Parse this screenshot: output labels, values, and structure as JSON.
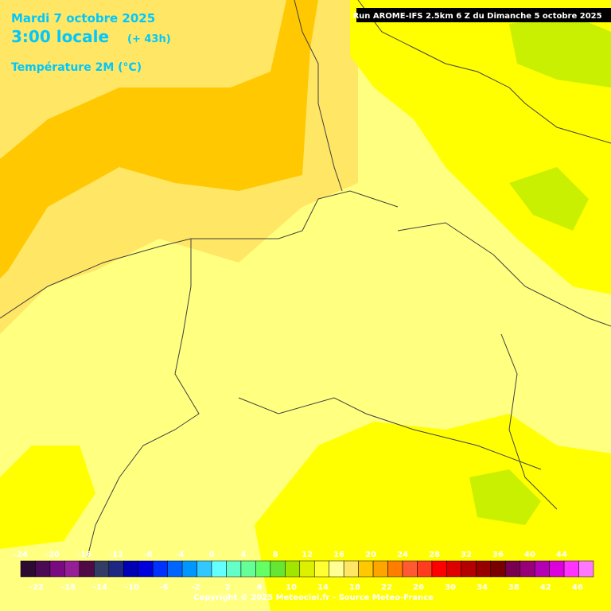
{
  "header": {
    "date": "Mardi 7 octobre 2025",
    "time": "3:00 locale",
    "offset": "(+ 43h)",
    "field": "Température 2M (°C)",
    "run": "Run AROME-IFS 2.5km 6 Z du Dimanche 5 octobre 2025"
  },
  "legend": {
    "ticks": [
      -24,
      -22,
      -20,
      -18,
      -16,
      -14,
      -12,
      -10,
      -8,
      -6,
      -4,
      -2,
      0,
      2,
      4,
      6,
      8,
      10,
      12,
      14,
      16,
      18,
      20,
      22,
      24,
      26,
      28,
      30,
      32,
      34,
      36,
      38,
      40,
      42,
      44,
      46
    ],
    "colors": [
      "#2d0a32",
      "#4b0a55",
      "#780a82",
      "#961e96",
      "#500a46",
      "#323c64",
      "#1e2882",
      "#0000b4",
      "#0000dc",
      "#0032ff",
      "#0064ff",
      "#0096ff",
      "#32c8ff",
      "#64ffff",
      "#64ffc8",
      "#64ff96",
      "#64ff64",
      "#64e632",
      "#a0e600",
      "#dcf000",
      "#ffff32",
      "#ffff96",
      "#ffe664",
      "#ffc800",
      "#ffa500",
      "#ff7d00",
      "#ff5a32",
      "#ff3c1e",
      "#ff0000",
      "#dc0000",
      "#b40000",
      "#960000",
      "#780000",
      "#780050",
      "#960078",
      "#b400b4",
      "#dc00dc",
      "#ff32ff",
      "#ff78ff"
    ]
  },
  "footer": {
    "copyright": "Copyright © 2025 Meteociel.fr - Source Meteo-France"
  }
}
